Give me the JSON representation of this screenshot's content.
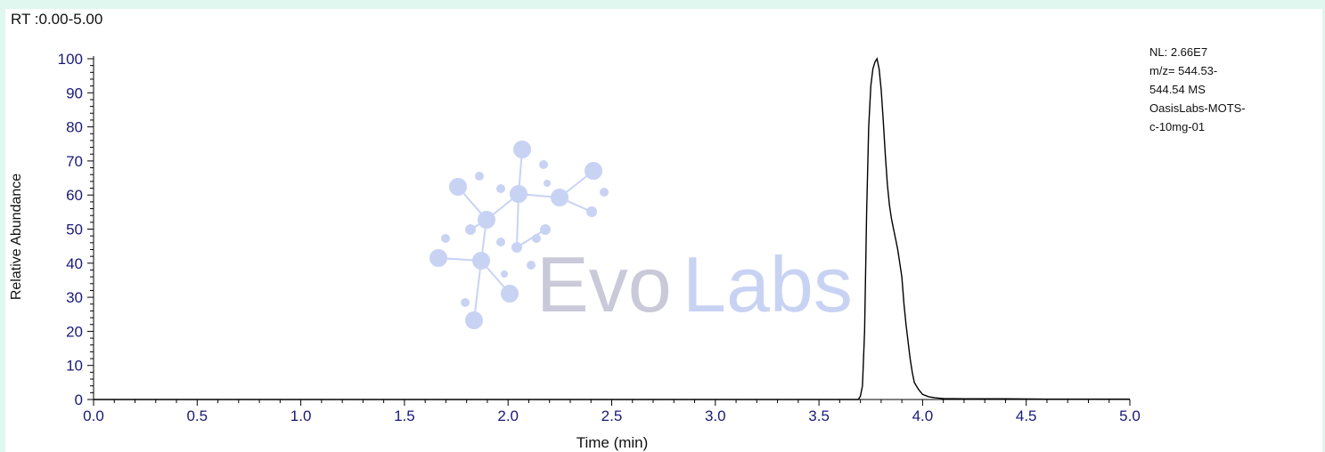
{
  "header": {
    "rt_range": "RT :0.00-5.00"
  },
  "info_box": {
    "lines": [
      "NL: 2.66E7",
      "m/z= 544.53-",
      "544.54 MS",
      "OasisLabs-MOTS-",
      "c-10mg-01"
    ]
  },
  "watermark": {
    "text_evo": "Evo",
    "text_labs": "Labs",
    "icon": "molecule-network-icon"
  },
  "colors": {
    "background": "#dff7ee",
    "plot": "#ffffff",
    "axis": "#000000",
    "tick_label": "#1a1a7a",
    "trace": "#000000",
    "watermark_dark": "#c9c9d9",
    "watermark_light": "#c8d3f4"
  },
  "chart_data": {
    "type": "line",
    "title": "",
    "xlabel": "Time (min)",
    "ylabel": "Relative Abundance",
    "xlim": [
      0.0,
      5.0
    ],
    "ylim": [
      0,
      100
    ],
    "x_ticks": [
      "0.0",
      "0.5",
      "1.0",
      "1.5",
      "2.0",
      "2.5",
      "3.0",
      "3.5",
      "4.0",
      "4.5",
      "5.0"
    ],
    "y_ticks": [
      "0",
      "10",
      "20",
      "30",
      "40",
      "50",
      "60",
      "70",
      "80",
      "90",
      "100"
    ],
    "grid": false,
    "legend": "none",
    "series": [
      {
        "x": [
          0.0,
          3.69,
          3.7,
          3.71,
          3.72,
          3.73,
          3.74,
          3.75,
          3.76,
          3.77,
          3.78,
          3.79,
          3.8,
          3.81,
          3.82,
          3.83,
          3.84,
          3.85,
          3.86,
          3.87,
          3.88,
          3.89,
          3.9,
          3.91,
          3.92,
          3.93,
          3.94,
          3.95,
          3.96,
          3.98,
          4.0,
          4.03,
          4.06,
          4.1,
          4.2,
          4.4,
          4.6,
          4.8,
          5.0
        ],
        "y": [
          0,
          0,
          1,
          4,
          20,
          55,
          80,
          92,
          97,
          99,
          100,
          97,
          91,
          82,
          72,
          63,
          57,
          53,
          50,
          47,
          44,
          40,
          36,
          28,
          22,
          17,
          12,
          8,
          5,
          3,
          1.5,
          0.8,
          0.5,
          0.3,
          0.2,
          0.2,
          0.1,
          0.1,
          0.1
        ]
      }
    ]
  }
}
